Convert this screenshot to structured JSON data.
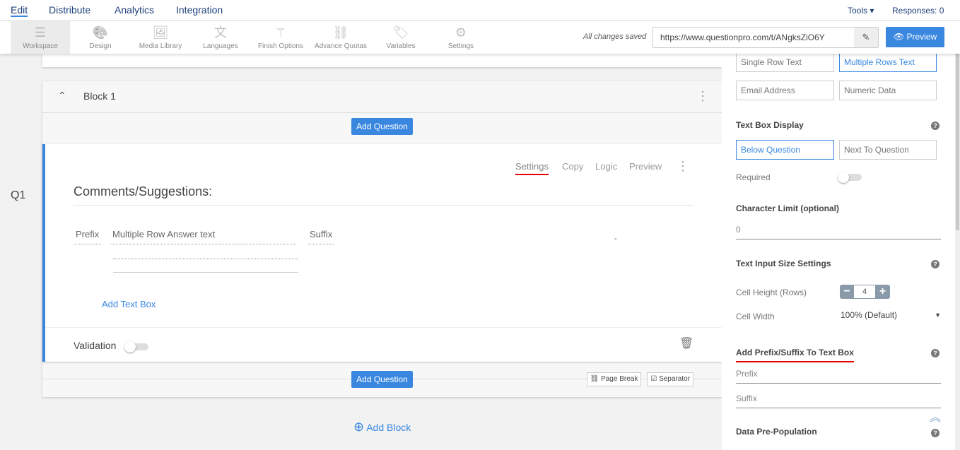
{
  "nav": {
    "items": [
      "Edit",
      "Distribute",
      "Analytics",
      "Integration"
    ],
    "tools": "Tools",
    "responses": "Responses: 0"
  },
  "toolbar": {
    "items": [
      {
        "label": "Workspace",
        "icon": "workspace-icon"
      },
      {
        "label": "Design",
        "icon": "palette-icon"
      },
      {
        "label": "Media Library",
        "icon": "image-icon"
      },
      {
        "label": "Languages",
        "icon": "translate-icon"
      },
      {
        "label": "Finish Options",
        "icon": "magic-wand-icon"
      },
      {
        "label": "Advance Quotas",
        "icon": "link-icon"
      },
      {
        "label": "Variables",
        "icon": "tag-icon"
      },
      {
        "label": "Settings",
        "icon": "gear-icon"
      }
    ],
    "saved": "All changes saved",
    "url": "https://www.questionpro.com/t/ANgksZiO6Y",
    "preview": "Preview"
  },
  "block": {
    "title": "Block 1",
    "add_question": "Add Question",
    "page_break": "Page Break",
    "separator": "Separator",
    "add_block": "Add Block"
  },
  "question": {
    "number": "Q1",
    "title": "Comments/Suggestions:",
    "actions": [
      "Settings",
      "Copy",
      "Logic",
      "Preview"
    ],
    "prefix": "Prefix",
    "answer": "Multiple Row Answer text",
    "suffix": "Suffix",
    "add_text_box": "Add Text Box",
    "validation": "Validation",
    "dash": "-"
  },
  "panel": {
    "types": [
      "Single Row Text",
      "Multiple Rows Text",
      "Email Address",
      "Numeric Data"
    ],
    "display_label": "Text Box Display",
    "display": [
      "Below Question",
      "Next To Question"
    ],
    "required": "Required",
    "char_limit_label": "Character Limit (optional)",
    "char_limit": "0",
    "size_label": "Text Input Size Settings",
    "cell_height_label": "Cell Height (Rows)",
    "cell_height": "4",
    "cell_width_label": "Cell Width",
    "cell_width": "100% (Default)",
    "prefix_suffix_label": "Add Prefix/Suffix To Text Box",
    "prefix_placeholder": "Prefix",
    "suffix_placeholder": "Suffix",
    "prepop_label": "Data Pre-Population"
  },
  "colors": {
    "accent": "#3a87e0",
    "highlight": "#e00000"
  }
}
